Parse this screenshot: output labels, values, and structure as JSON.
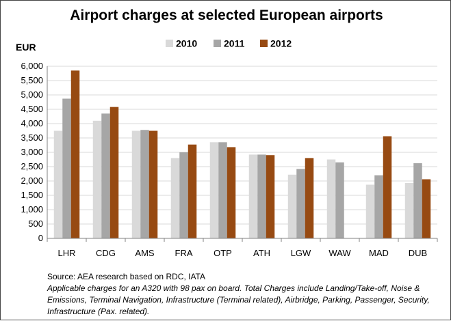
{
  "chart_data": {
    "type": "bar",
    "title": "Airport charges at selected European airports",
    "ylabel": "EUR",
    "xlabel": "",
    "ylim": [
      0,
      6000
    ],
    "ytick_step": 500,
    "grid": true,
    "legend_position": "top",
    "categories": [
      "LHR",
      "CDG",
      "AMS",
      "FRA",
      "OTP",
      "ATH",
      "LGW",
      "WAW",
      "MAD",
      "DUB"
    ],
    "series": [
      {
        "name": "2010",
        "color": "#d9d9d9",
        "values": [
          3750,
          4100,
          3750,
          2800,
          3350,
          2920,
          2220,
          2750,
          1870,
          1930
        ]
      },
      {
        "name": "2011",
        "color": "#a6a6a6",
        "values": [
          4870,
          4350,
          3780,
          3000,
          3350,
          2920,
          2420,
          2650,
          2200,
          2620
        ]
      },
      {
        "name": "2012",
        "color": "#974a12",
        "values": [
          5850,
          4580,
          3750,
          3270,
          3180,
          2900,
          2800,
          null,
          3560,
          2060
        ]
      }
    ]
  },
  "source": {
    "line1": "Source: AEA research based on RDC, IATA",
    "note": "Applicable charges for an A320 with 98 pax on board. Total Charges include Landing/Take-off, Noise & Emissions, Terminal Navigation, Infrastructure (Terminal related), Airbridge, Parking, Passenger, Security, Infrastructure (Pax. related)."
  }
}
